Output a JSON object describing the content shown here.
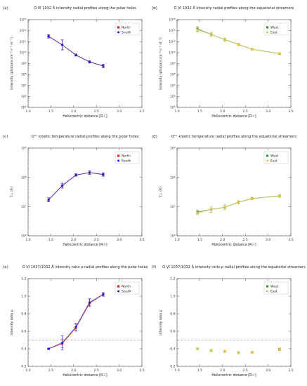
{
  "chart_data": [
    {
      "panel": "(a)",
      "type": "line",
      "title": "O VI 1032 Å intensity radial profiles along the polar holes",
      "xlabel": "Heliocentric distance [R☉]",
      "ylabel": "Intensity [photons cm⁻² s⁻¹ sr⁻¹]",
      "xlim": [
        1.0,
        3.5
      ],
      "ylim": [
        100000,
        10000000000000
      ],
      "yscale": "log",
      "xticks": [
        "1.0",
        "1.5",
        "2.0",
        "2.5",
        "3.0",
        "3.5"
      ],
      "yticks": [
        "10⁵",
        "10⁶",
        "10⁷",
        "10⁸",
        "10⁹",
        "10¹⁰",
        "10¹¹",
        "10¹²",
        "10¹³"
      ],
      "legend": "top-right",
      "series": [
        {
          "name": "North",
          "color": "#d62728",
          "x": [
            1.45,
            1.75,
            2.05,
            2.35,
            2.65
          ],
          "y": [
            300000000000.0,
            50000000000.0,
            6000000000.0,
            1400000000.0,
            600000000.0
          ],
          "err": [
            0.15,
            0.45,
            0.1,
            0.1,
            0.15
          ]
        },
        {
          "name": "South",
          "color": "#1f1fd6",
          "x": [
            1.45,
            1.75,
            2.05,
            2.35,
            2.65
          ],
          "y": [
            300000000000.0,
            50000000000.0,
            6000000000.0,
            1400000000.0,
            600000000.0
          ],
          "err": [
            0.15,
            0.45,
            0.1,
            0.1,
            0.15
          ]
        }
      ]
    },
    {
      "panel": "(b)",
      "type": "line",
      "title": "O VI 1032 Å intensity radial profiles along the equatorial streamers",
      "xlabel": "Heliocentric distance [R☉]",
      "ylabel": "Intensity [photons cm⁻² s⁻¹ sr⁻¹]",
      "xlim": [
        1.0,
        3.5
      ],
      "ylim": [
        100000,
        10000000000000
      ],
      "yscale": "log",
      "xticks": [
        "1.0",
        "1.5",
        "2.0",
        "2.5",
        "3.0",
        "3.5"
      ],
      "yticks": [
        "10⁵",
        "10⁶",
        "10⁷",
        "10⁸",
        "10⁹",
        "10¹⁰",
        "10¹¹",
        "10¹²",
        "10¹³"
      ],
      "legend": "top-right",
      "series": [
        {
          "name": "West",
          "color": "#2ca02c",
          "x": [
            1.45,
            1.75,
            2.05,
            2.35,
            2.65,
            3.25
          ],
          "y": [
            1400000000000.0,
            450000000000.0,
            150000000000.0,
            55000000000.0,
            20000000000.0,
            8000000000.0
          ],
          "err": [
            0.2,
            0.2,
            0.15,
            0.1,
            0.05,
            0.08
          ]
        },
        {
          "name": "East",
          "color": "#f0c040",
          "x": [
            1.45,
            1.75,
            2.05,
            2.35,
            2.65,
            3.25
          ],
          "y": [
            1200000000000.0,
            450000000000.0,
            150000000000.0,
            55000000000.0,
            20000000000.0,
            8000000000.0
          ],
          "err": [
            0.2,
            0.2,
            0.15,
            0.1,
            0.05,
            0.08
          ]
        }
      ]
    },
    {
      "panel": "(c)",
      "type": "line",
      "title": "O⁵⁺ kinetic temperature radial profiles along the polar holes",
      "xlabel": "Heliocentric distance [R☉]",
      "ylabel": "T⊥ [K]",
      "xlim": [
        1.0,
        3.5
      ],
      "ylim": [
        1000000,
        1000000000
      ],
      "yscale": "log",
      "xticks": [
        "1.0",
        "1.5",
        "2.0",
        "2.5",
        "3.0",
        "3.5"
      ],
      "yticks": [
        "10⁶",
        "10⁷",
        "10⁸",
        "10⁹"
      ],
      "legend": "top-right",
      "series": [
        {
          "name": "North",
          "color": "#d62728",
          "x": [
            1.45,
            1.75,
            2.05,
            2.35,
            2.65
          ],
          "y": [
            17000000.0,
            52000000.0,
            120000000.0,
            145000000.0,
            125000000.0
          ],
          "err": [
            0.07,
            0.08,
            0.04,
            0.06,
            0.06
          ]
        },
        {
          "name": "South",
          "color": "#1f1fd6",
          "x": [
            1.45,
            1.75,
            2.05,
            2.35,
            2.65
          ],
          "y": [
            17000000.0,
            52000000.0,
            120000000.0,
            145000000.0,
            125000000.0
          ],
          "err": [
            0.07,
            0.08,
            0.04,
            0.06,
            0.06
          ]
        }
      ]
    },
    {
      "panel": "(d)",
      "type": "line",
      "title": "O⁵⁺ kinetic temperature radial profiles along the equatorial streamers",
      "xlabel": "Heliocentric distance [R☉]",
      "ylabel": "T⊥ [K]",
      "xlim": [
        1.0,
        3.5
      ],
      "ylim": [
        1000000,
        1000000000
      ],
      "yscale": "log",
      "xticks": [
        "1.0",
        "1.5",
        "2.0",
        "2.5",
        "3.0",
        "3.5"
      ],
      "yticks": [
        "10⁶",
        "10⁷",
        "10⁸",
        "10⁹"
      ],
      "legend": "top-right",
      "series": [
        {
          "name": "West",
          "color": "#2ca02c",
          "x": [
            1.45,
            1.75,
            2.05,
            2.35,
            2.65,
            3.25
          ],
          "y": [
            6500000.0,
            8000000.0,
            9500000.0,
            14000000.0,
            19000000.0,
            23000000.0
          ],
          "err": [
            0.06,
            0.1,
            0.08,
            0.06,
            0.04,
            0.04
          ]
        },
        {
          "name": "East",
          "color": "#f0c040",
          "x": [
            1.45,
            1.75,
            2.05,
            2.35,
            2.65,
            3.25
          ],
          "y": [
            6000000.0,
            8000000.0,
            9500000.0,
            14000000.0,
            19000000.0,
            23000000.0
          ],
          "err": [
            0.06,
            0.1,
            0.08,
            0.06,
            0.04,
            0.04
          ]
        }
      ]
    },
    {
      "panel": "(e)",
      "type": "line",
      "title": "O VI 1037/1032 Å intensity ratio ρ radial profiles along the polar holes",
      "xlabel": "Heliocentric distance [R☉]",
      "ylabel": "Intensity ratio ρ",
      "xlim": [
        1.0,
        3.5
      ],
      "ylim": [
        0.2,
        1.2
      ],
      "yscale": "linear",
      "xticks": [
        "1.0",
        "1.5",
        "2.0",
        "2.5",
        "3.0",
        "3.5"
      ],
      "yticks": [
        "0.2",
        "0.4",
        "0.6",
        "0.8",
        "1.0",
        "1.2"
      ],
      "reference_line": 0.5,
      "legend": "top-right",
      "series": [
        {
          "name": "North",
          "color": "#d62728",
          "x": [
            1.45,
            1.75,
            2.05,
            2.35,
            2.65
          ],
          "y": [
            0.4,
            0.46,
            0.64,
            0.92,
            1.02
          ],
          "err": [
            0.005,
            0.05,
            0.04,
            0.04,
            0.02
          ]
        },
        {
          "name": "South",
          "color": "#1f1fd6",
          "x": [
            1.45,
            1.75,
            2.05,
            2.35,
            2.65
          ],
          "y": [
            0.4,
            0.47,
            0.65,
            0.93,
            1.02
          ],
          "err": [
            0.005,
            0.08,
            0.04,
            0.04,
            0.02
          ]
        }
      ]
    },
    {
      "panel": "(f)",
      "type": "scatter",
      "title": "O VI 1037/1032 Å intensity ratio ρ radial profiles along the equatorial streamers",
      "xlabel": "Heliocentric distance [R☉]",
      "ylabel": "Intensity ratio ρ",
      "xlim": [
        1.0,
        3.5
      ],
      "ylim": [
        0.2,
        1.2
      ],
      "yscale": "linear",
      "xticks": [
        "1.0",
        "1.5",
        "2.0",
        "2.5",
        "3.0",
        "3.5"
      ],
      "yticks": [
        "0.2",
        "0.4",
        "0.6",
        "0.8",
        "1.0",
        "1.2"
      ],
      "reference_line": 0.5,
      "legend": "top-right",
      "series": [
        {
          "name": "West",
          "color": "#2ca02c",
          "x": [
            1.45,
            1.75,
            2.05,
            2.35,
            2.65,
            3.25
          ],
          "y": [
            0.4,
            0.38,
            0.37,
            0.355,
            0.36,
            0.395
          ],
          "err": [
            0.008,
            0.012,
            0.012,
            0.012,
            0.005,
            0.015
          ]
        },
        {
          "name": "East",
          "color": "#f0c040",
          "x": [
            1.45,
            1.75,
            2.05,
            2.35,
            2.65,
            3.25
          ],
          "y": [
            0.4,
            0.38,
            0.37,
            0.355,
            0.36,
            0.395
          ],
          "err": [
            0.008,
            0.012,
            0.012,
            0.012,
            0.005,
            0.015
          ]
        }
      ]
    }
  ]
}
